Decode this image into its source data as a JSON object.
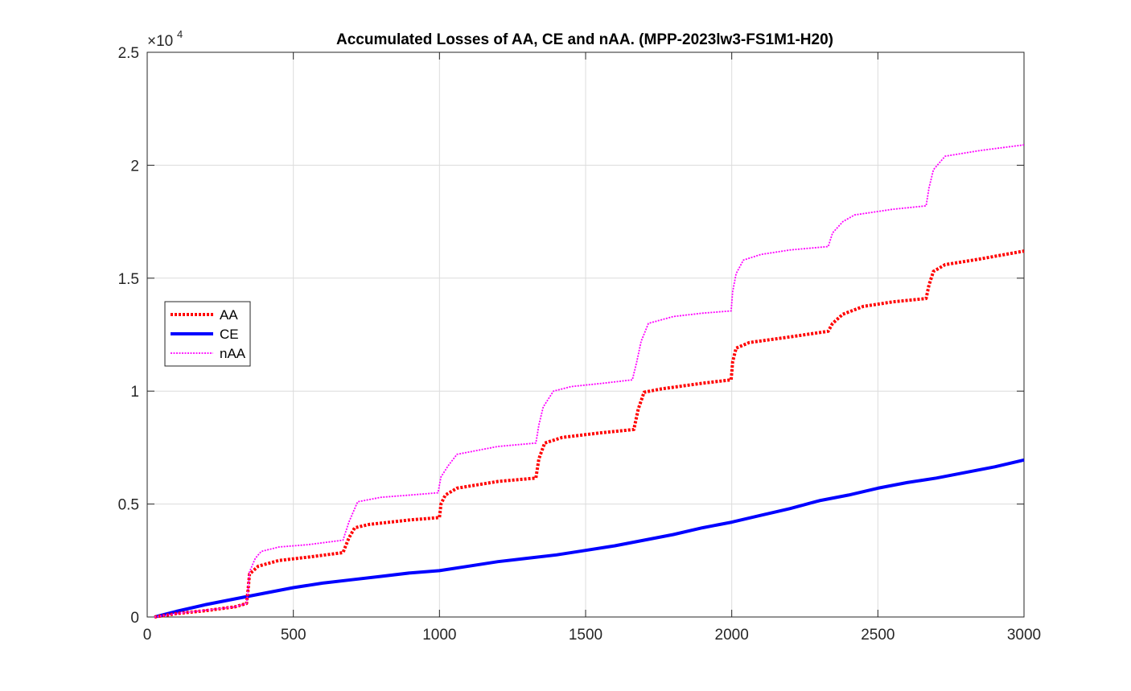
{
  "chart_data": {
    "type": "line",
    "title": "Accumulated Losses of AA, CE and nAA. (MPP-2023lw3-FS1M1-H20)",
    "xlabel": "",
    "ylabel": "",
    "xlim": [
      0,
      3000
    ],
    "ylim": [
      0,
      25000
    ],
    "y_exponent_label": "×10",
    "y_exponent_power": "4",
    "x_ticks": [
      0,
      500,
      1000,
      1500,
      2000,
      2500,
      3000
    ],
    "x_tick_labels": [
      "0",
      "500",
      "1000",
      "1500",
      "2000",
      "2500",
      "3000"
    ],
    "y_ticks": [
      0,
      5000,
      10000,
      15000,
      20000,
      25000
    ],
    "y_tick_labels": [
      "0",
      "0.5",
      "1",
      "1.5",
      "2",
      "2.5"
    ],
    "grid": true,
    "legend_position": "left",
    "series": [
      {
        "name": "AA",
        "color": "#ff0000",
        "style": "dotted-thick",
        "points": [
          [
            25,
            0
          ],
          [
            100,
            150
          ],
          [
            200,
            280
          ],
          [
            300,
            450
          ],
          [
            340,
            600
          ],
          [
            345,
            1200
          ],
          [
            350,
            1900
          ],
          [
            380,
            2250
          ],
          [
            450,
            2500
          ],
          [
            550,
            2650
          ],
          [
            670,
            2850
          ],
          [
            690,
            3500
          ],
          [
            710,
            3950
          ],
          [
            760,
            4100
          ],
          [
            900,
            4300
          ],
          [
            1000,
            4400
          ],
          [
            1005,
            5000
          ],
          [
            1020,
            5400
          ],
          [
            1060,
            5700
          ],
          [
            1200,
            6000
          ],
          [
            1330,
            6150
          ],
          [
            1340,
            7000
          ],
          [
            1360,
            7700
          ],
          [
            1420,
            7950
          ],
          [
            1550,
            8150
          ],
          [
            1665,
            8300
          ],
          [
            1680,
            9200
          ],
          [
            1700,
            9950
          ],
          [
            1760,
            10100
          ],
          [
            1900,
            10350
          ],
          [
            1998,
            10500
          ],
          [
            2003,
            11300
          ],
          [
            2015,
            11900
          ],
          [
            2060,
            12150
          ],
          [
            2200,
            12400
          ],
          [
            2330,
            12650
          ],
          [
            2345,
            13000
          ],
          [
            2380,
            13400
          ],
          [
            2450,
            13750
          ],
          [
            2550,
            13950
          ],
          [
            2665,
            14100
          ],
          [
            2675,
            14700
          ],
          [
            2690,
            15300
          ],
          [
            2730,
            15600
          ],
          [
            2850,
            15850
          ],
          [
            3000,
            16200
          ]
        ]
      },
      {
        "name": "CE",
        "color": "#0000ff",
        "style": "solid-thick",
        "points": [
          [
            25,
            0
          ],
          [
            100,
            250
          ],
          [
            200,
            550
          ],
          [
            300,
            800
          ],
          [
            400,
            1050
          ],
          [
            500,
            1300
          ],
          [
            600,
            1500
          ],
          [
            700,
            1650
          ],
          [
            800,
            1800
          ],
          [
            900,
            1950
          ],
          [
            1000,
            2050
          ],
          [
            1100,
            2250
          ],
          [
            1200,
            2450
          ],
          [
            1300,
            2600
          ],
          [
            1400,
            2750
          ],
          [
            1500,
            2950
          ],
          [
            1600,
            3150
          ],
          [
            1700,
            3400
          ],
          [
            1800,
            3650
          ],
          [
            1900,
            3950
          ],
          [
            2000,
            4200
          ],
          [
            2100,
            4500
          ],
          [
            2200,
            4800
          ],
          [
            2300,
            5150
          ],
          [
            2400,
            5400
          ],
          [
            2500,
            5700
          ],
          [
            2600,
            5950
          ],
          [
            2700,
            6150
          ],
          [
            2800,
            6400
          ],
          [
            2900,
            6650
          ],
          [
            3000,
            6950
          ]
        ]
      },
      {
        "name": "nAA",
        "color": "#ff00ff",
        "style": "dotted-thin",
        "points": [
          [
            25,
            0
          ],
          [
            100,
            150
          ],
          [
            200,
            300
          ],
          [
            300,
            450
          ],
          [
            340,
            600
          ],
          [
            345,
            1200
          ],
          [
            350,
            2000
          ],
          [
            370,
            2600
          ],
          [
            390,
            2900
          ],
          [
            450,
            3100
          ],
          [
            550,
            3200
          ],
          [
            670,
            3400
          ],
          [
            690,
            4200
          ],
          [
            720,
            5100
          ],
          [
            800,
            5300
          ],
          [
            900,
            5400
          ],
          [
            995,
            5500
          ],
          [
            1005,
            6200
          ],
          [
            1030,
            6700
          ],
          [
            1060,
            7200
          ],
          [
            1200,
            7550
          ],
          [
            1330,
            7700
          ],
          [
            1340,
            8500
          ],
          [
            1355,
            9300
          ],
          [
            1390,
            10000
          ],
          [
            1450,
            10200
          ],
          [
            1560,
            10350
          ],
          [
            1660,
            10500
          ],
          [
            1675,
            11300
          ],
          [
            1690,
            12200
          ],
          [
            1715,
            13000
          ],
          [
            1800,
            13300
          ],
          [
            1900,
            13450
          ],
          [
            1998,
            13550
          ],
          [
            2003,
            14400
          ],
          [
            2015,
            15200
          ],
          [
            2040,
            15800
          ],
          [
            2100,
            16050
          ],
          [
            2200,
            16250
          ],
          [
            2330,
            16400
          ],
          [
            2345,
            17000
          ],
          [
            2380,
            17500
          ],
          [
            2420,
            17800
          ],
          [
            2550,
            18050
          ],
          [
            2665,
            18200
          ],
          [
            2675,
            19000
          ],
          [
            2690,
            19800
          ],
          [
            2730,
            20400
          ],
          [
            2850,
            20650
          ],
          [
            3000,
            20900
          ]
        ]
      }
    ]
  }
}
